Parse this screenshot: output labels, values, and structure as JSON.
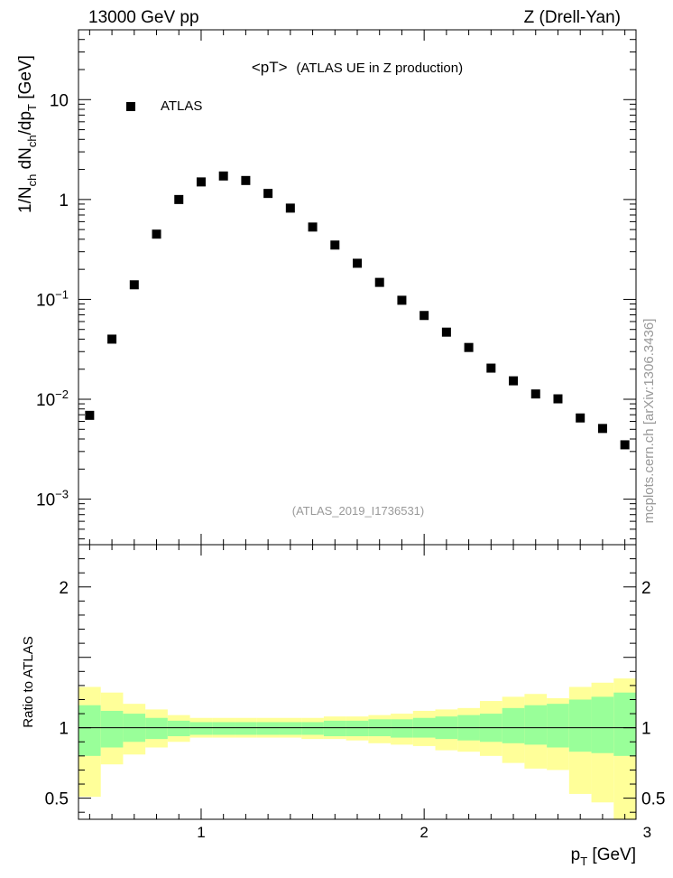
{
  "header": {
    "left": "13000 GeV pp",
    "right": "Z (Drell-Yan)"
  },
  "side_label": "mcplots.cern.ch [arXiv:1306.3436]",
  "chart_data": [
    {
      "type": "scatter",
      "title": "<pT>",
      "subtitle": "(ATLAS UE in Z production)",
      "watermark": "(ATLAS_2019_I1736531)",
      "ylabel_parts": {
        "a": "1/N",
        "b": "ch",
        "c": " dN",
        "d": "ch",
        "e": "/dp",
        "f": "T",
        "g": " [GeV]"
      },
      "yscale": "log",
      "xlim": [
        0.45,
        2.95
      ],
      "ylim": [
        0.00035,
        50
      ],
      "ytick_labels": [
        {
          "value": 10,
          "mant": "10",
          "exp": ""
        },
        {
          "value": 1,
          "mant": "1",
          "exp": ""
        },
        {
          "value": 0.1,
          "mant": "10",
          "exp": "−1"
        },
        {
          "value": 0.01,
          "mant": "10",
          "exp": "−2"
        },
        {
          "value": 0.001,
          "mant": "10",
          "exp": "−3"
        }
      ],
      "legend": {
        "position": "top-left",
        "label": "ATLAS",
        "marker": "square",
        "color": "#000000"
      },
      "series": [
        {
          "name": "ATLAS",
          "x": [
            0.5,
            0.6,
            0.7,
            0.8,
            0.9,
            1.0,
            1.1,
            1.2,
            1.3,
            1.4,
            1.5,
            1.6,
            1.7,
            1.8,
            1.9,
            2.0,
            2.1,
            2.2,
            2.3,
            2.4,
            2.5,
            2.6,
            2.7,
            2.8,
            2.9
          ],
          "y": [
            0.0069,
            0.04,
            0.14,
            0.45,
            1.0,
            1.5,
            1.72,
            1.55,
            1.15,
            0.82,
            0.53,
            0.35,
            0.23,
            0.148,
            0.098,
            0.069,
            0.047,
            0.033,
            0.0205,
            0.0153,
            0.0113,
            0.0101,
            0.0065,
            0.0051,
            0.0035
          ]
        }
      ]
    },
    {
      "type": "area",
      "ylabel": "Ratio to ATLAS",
      "xlabel_parts": {
        "a": "p",
        "b": "T",
        "c": " [GeV]"
      },
      "xlim": [
        0.45,
        2.95
      ],
      "ylim": [
        0.35,
        2.3
      ],
      "x_tick_labels": [
        {
          "value": 1,
          "label": "1"
        },
        {
          "value": 2,
          "label": "2"
        },
        {
          "value": 3,
          "label": "3"
        }
      ],
      "y_tick_labels": [
        {
          "value": 2,
          "label": "2"
        },
        {
          "value": 1,
          "label": "1"
        },
        {
          "value": 0.5,
          "label": "0.5"
        }
      ],
      "colors": {
        "inner": "#99ff99",
        "outer": "#ffff99",
        "line": "#000000"
      },
      "bin_edges": [
        0.45,
        0.55,
        0.65,
        0.75,
        0.85,
        0.95,
        1.05,
        1.15,
        1.25,
        1.35,
        1.45,
        1.55,
        1.65,
        1.75,
        1.85,
        1.95,
        2.05,
        2.15,
        2.25,
        2.35,
        2.45,
        2.55,
        2.65,
        2.75,
        2.85,
        2.95
      ],
      "inner_band": {
        "low": [
          0.8,
          0.86,
          0.9,
          0.92,
          0.94,
          0.95,
          0.95,
          0.95,
          0.95,
          0.95,
          0.95,
          0.94,
          0.94,
          0.94,
          0.93,
          0.93,
          0.92,
          0.91,
          0.9,
          0.89,
          0.88,
          0.86,
          0.83,
          0.82,
          0.8
        ],
        "high": [
          1.16,
          1.12,
          1.1,
          1.07,
          1.05,
          1.04,
          1.04,
          1.04,
          1.04,
          1.04,
          1.04,
          1.05,
          1.05,
          1.06,
          1.06,
          1.07,
          1.08,
          1.09,
          1.1,
          1.14,
          1.16,
          1.17,
          1.2,
          1.22,
          1.25
        ]
      },
      "outer_band": {
        "low": [
          0.51,
          0.74,
          0.81,
          0.86,
          0.9,
          0.93,
          0.93,
          0.93,
          0.93,
          0.93,
          0.92,
          0.92,
          0.91,
          0.89,
          0.88,
          0.87,
          0.84,
          0.83,
          0.8,
          0.75,
          0.71,
          0.7,
          0.53,
          0.47,
          0.3
        ],
        "high": [
          1.29,
          1.25,
          1.17,
          1.13,
          1.09,
          1.07,
          1.07,
          1.07,
          1.07,
          1.07,
          1.07,
          1.08,
          1.08,
          1.09,
          1.1,
          1.12,
          1.13,
          1.14,
          1.19,
          1.22,
          1.24,
          1.21,
          1.29,
          1.32,
          1.35
        ]
      },
      "reference_line": 1.0
    }
  ]
}
